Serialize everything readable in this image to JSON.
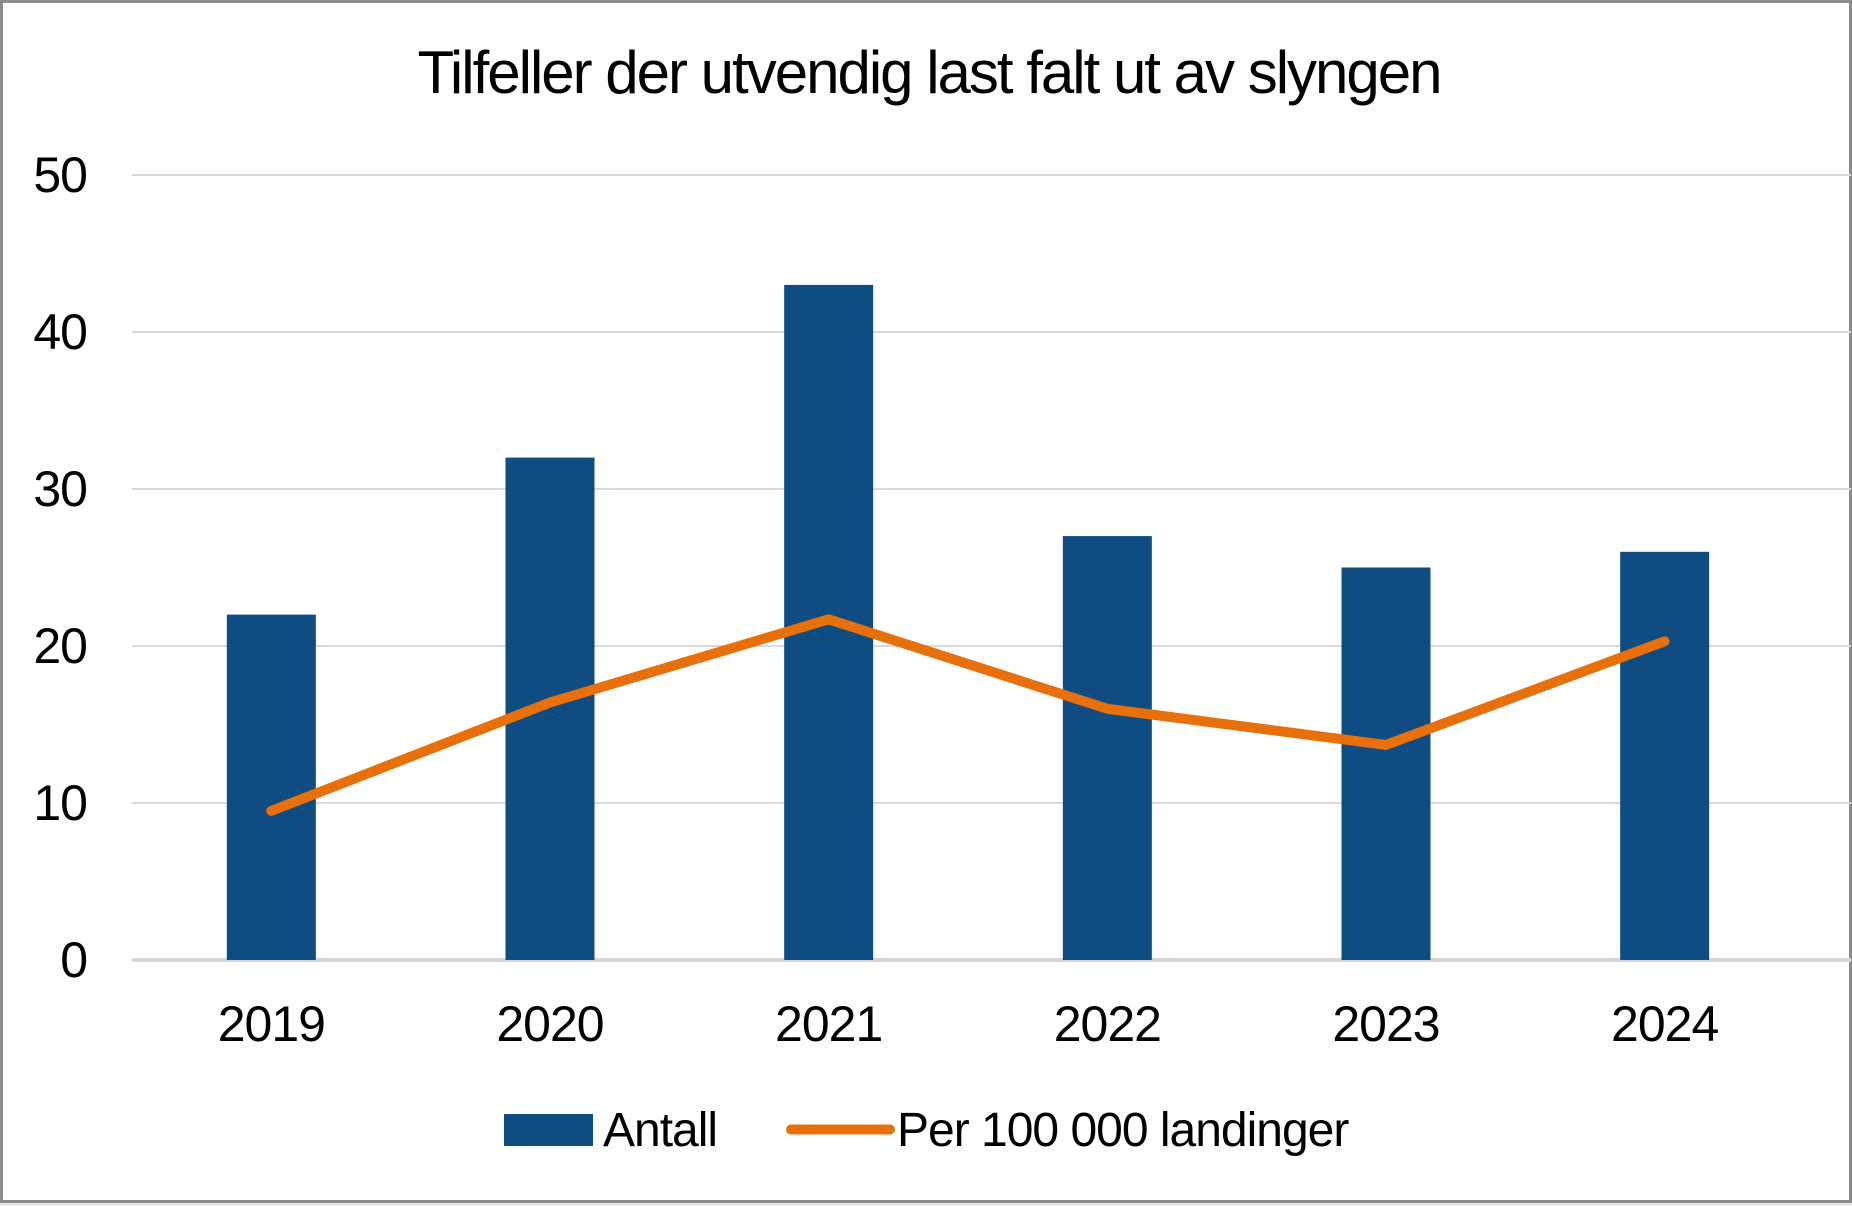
{
  "chart_data": {
    "type": "bar",
    "subtype": "combo-bar-line",
    "title": "Tilfeller der utvendig last falt ut av slyngen",
    "categories": [
      "2019",
      "2020",
      "2021",
      "2022",
      "2023",
      "2024"
    ],
    "series": [
      {
        "name": "Antall",
        "type": "bar",
        "color": "#0F4C81",
        "values": [
          22,
          32,
          43,
          27,
          25,
          26
        ]
      },
      {
        "name": "Per 100 000 landinger",
        "type": "line",
        "color": "#E8700A",
        "values": [
          9.5,
          16.4,
          21.7,
          16.0,
          13.7,
          20.3
        ]
      }
    ],
    "y_axis": {
      "min": 0,
      "max": 50,
      "step": 10,
      "tick_labels": [
        "0",
        "10",
        "20",
        "30",
        "40",
        "50"
      ]
    },
    "x_axis": {
      "label": ""
    },
    "grid": true,
    "legend_position": "bottom",
    "colors": {
      "grid": "#D9D9D9",
      "baseline": "#D6D6D6",
      "text": "#000000",
      "background": "#FFFFFF",
      "frame_border": "#8C8C8C"
    }
  }
}
